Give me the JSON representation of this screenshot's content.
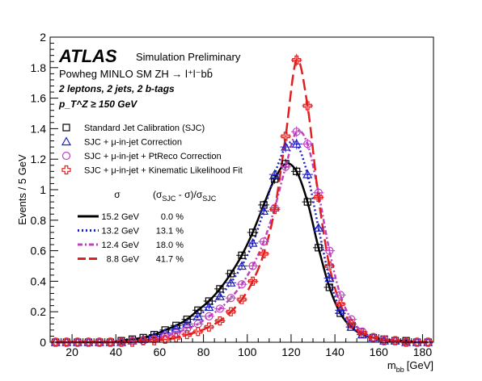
{
  "chart_data": {
    "type": "line",
    "xlabel": "m",
    "xlabel_sub": "bb",
    "xlabel_unit": "[GeV]",
    "ylabel": "Events / 5 GeV",
    "xlim": [
      10,
      185
    ],
    "ylim": [
      0,
      2
    ],
    "xticks": [
      20,
      40,
      60,
      80,
      100,
      120,
      140,
      160,
      180
    ],
    "yticks": [
      0,
      0.2,
      0.4,
      0.6,
      0.8,
      1,
      1.2,
      1.4,
      1.6,
      1.8,
      2
    ],
    "ytick_labels": [
      "0",
      "0.2",
      "0.4",
      "0.6",
      "0.8",
      "1",
      "1.2",
      "1.4",
      "1.6",
      "1.8",
      "2"
    ],
    "grid": false,
    "legend_position": "top-left",
    "annotations": {
      "experiment": "ATLAS",
      "status": "Simulation Preliminary",
      "sample": "Powheg MINLO SM ZH → l⁺l⁻bb̄",
      "selection": "2 leptons, 2 jets, 2 b-tags",
      "ptcut": "p_T^Z ≥ 150 GeV"
    },
    "legend_markers": [
      {
        "label": "Standard Jet Calibration (SJC)",
        "marker": "square",
        "color": "#000000"
      },
      {
        "label": "SJC + μ-in-jet Correction",
        "marker": "triangle",
        "color": "#2020c0"
      },
      {
        "label": "SJC + μ-in-jet + PtReco Correction",
        "marker": "circle",
        "color": "#c040c0"
      },
      {
        "label": "SJC + μ-in-jet + Kinematic Likelihood Fit",
        "marker": "cross",
        "color": "#e02020"
      }
    ],
    "resolution_table": {
      "header_sigma": "σ",
      "header_rel": "(σ_SJC - σ)/σ_SJC",
      "rows": [
        {
          "sigma": "15.2 GeV",
          "rel": "0.0 %",
          "color": "#000000",
          "dash": "solid"
        },
        {
          "sigma": "13.2 GeV",
          "rel": "13.1 %",
          "color": "#2020c0",
          "dash": "dot"
        },
        {
          "sigma": "12.4 GeV",
          "rel": "18.0 %",
          "color": "#c040c0",
          "dash": "dashdot"
        },
        {
          "sigma": "8.8 GeV",
          "rel": "41.7 %",
          "color": "#e02020",
          "dash": "longdash"
        }
      ]
    },
    "x": [
      12.5,
      17.5,
      22.5,
      27.5,
      32.5,
      37.5,
      42.5,
      47.5,
      52.5,
      57.5,
      62.5,
      67.5,
      72.5,
      77.5,
      82.5,
      87.5,
      92.5,
      97.5,
      102.5,
      107.5,
      112.5,
      117.5,
      122.5,
      127.5,
      132.5,
      137.5,
      142.5,
      147.5,
      152.5,
      157.5,
      162.5,
      167.5,
      172.5,
      177.5,
      182.5
    ],
    "series": [
      {
        "name": "Standard Jet Calibration (SJC)",
        "color": "#000000",
        "marker": "square",
        "values": [
          0,
          0,
          0,
          0,
          0,
          0,
          0.01,
          0.02,
          0.03,
          0.05,
          0.08,
          0.11,
          0.15,
          0.21,
          0.27,
          0.35,
          0.45,
          0.57,
          0.72,
          0.9,
          1.07,
          1.17,
          1.12,
          0.92,
          0.62,
          0.36,
          0.19,
          0.1,
          0.05,
          0.03,
          0.02,
          0.01,
          0.01,
          0,
          0
        ]
      },
      {
        "name": "SJC + μ-in-jet Correction",
        "color": "#2020c0",
        "marker": "triangle",
        "values": [
          0,
          0,
          0,
          0,
          0,
          0,
          0,
          0.01,
          0.02,
          0.04,
          0.06,
          0.09,
          0.12,
          0.17,
          0.23,
          0.3,
          0.39,
          0.5,
          0.65,
          0.86,
          1.1,
          1.28,
          1.3,
          1.1,
          0.75,
          0.42,
          0.21,
          0.1,
          0.05,
          0.03,
          0.01,
          0.01,
          0,
          0,
          0
        ]
      },
      {
        "name": "SJC + μ-in-jet + PtReco Correction",
        "color": "#c040c0",
        "marker": "circle",
        "values": [
          0,
          0,
          0,
          0,
          0,
          0,
          0,
          0.01,
          0.01,
          0.02,
          0.04,
          0.06,
          0.09,
          0.12,
          0.17,
          0.22,
          0.29,
          0.38,
          0.5,
          0.66,
          0.88,
          1.15,
          1.38,
          1.3,
          0.98,
          0.6,
          0.31,
          0.15,
          0.07,
          0.03,
          0.02,
          0.01,
          0,
          0,
          0
        ]
      },
      {
        "name": "SJC + μ-in-jet + Kinematic Likelihood Fit",
        "color": "#e02020",
        "marker": "cross",
        "values": [
          0,
          0,
          0,
          0,
          0,
          0,
          0,
          0,
          0.01,
          0.01,
          0.02,
          0.03,
          0.05,
          0.07,
          0.1,
          0.14,
          0.2,
          0.28,
          0.4,
          0.58,
          0.87,
          1.35,
          1.85,
          1.55,
          0.95,
          0.5,
          0.25,
          0.12,
          0.06,
          0.03,
          0.01,
          0.01,
          0,
          0,
          0
        ]
      }
    ]
  }
}
